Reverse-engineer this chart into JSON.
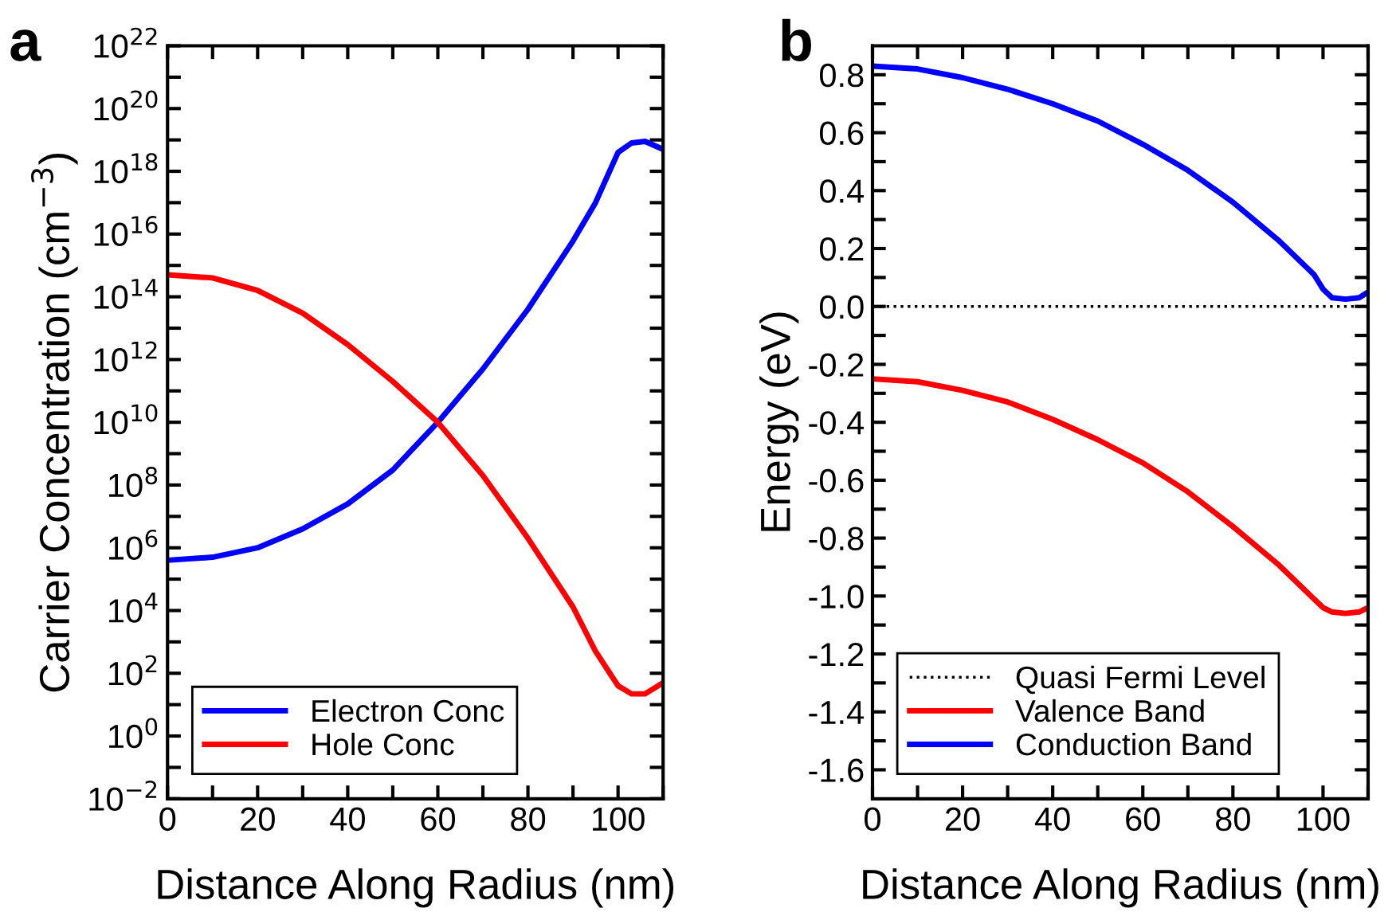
{
  "chart_data": [
    {
      "type": "line",
      "annotations": [
        "a"
      ],
      "xlabel": "Distance Along Radius (nm)",
      "ylabel": "Carrier Concentration (cm$^{−3}$)",
      "log": "y",
      "legend": "bottom left",
      "grid": false,
      "line_style": "solid",
      "marker": "none",
      "xlim": [
        0,
        110
      ],
      "xticks": [
        0,
        {
          "value": 10,
          "label": null
        },
        20,
        {
          "value": 30,
          "label": null
        },
        40,
        {
          "value": 50,
          "label": null
        },
        60,
        {
          "value": 70,
          "label": null
        },
        80,
        {
          "value": 90,
          "label": null
        },
        100,
        {
          "value": 110,
          "label": null
        }
      ],
      "ylim": [
        0.01,
        1e+22
      ],
      "yticks": [
        {
          "value": 0.01,
          "label": "10$^{−2}$"
        },
        {
          "value": 0.1,
          "label": null
        },
        {
          "value": 1,
          "label": "10$^{0}$"
        },
        {
          "value": 10,
          "label": null
        },
        {
          "value": 100.0,
          "label": "10$^{2}$"
        },
        {
          "value": 1000.0,
          "label": null
        },
        {
          "value": 10000.0,
          "label": "10$^{4}$"
        },
        {
          "value": 100000.0,
          "label": null
        },
        {
          "value": 1000000.0,
          "label": "10$^{6}$"
        },
        {
          "value": 10000000.0,
          "label": null
        },
        {
          "value": 100000000.0,
          "label": "10$^{8}$"
        },
        {
          "value": 1000000000.0,
          "label": null
        },
        {
          "value": 10000000000.0,
          "label": "10$^{10}$"
        },
        {
          "value": 100000000000.0,
          "label": null
        },
        {
          "value": 1000000000000.0,
          "label": "10$^{12}$"
        },
        {
          "value": 10000000000000.0,
          "label": null
        },
        {
          "value": 100000000000000.0,
          "label": "10$^{14}$"
        },
        {
          "value": 1000000000000000.0,
          "label": null
        },
        {
          "value": 1e+16,
          "label": "10$^{16}$"
        },
        {
          "value": 1e+17,
          "label": null
        },
        {
          "value": 1e+18,
          "label": "10$^{18}$"
        },
        {
          "value": 1e+19,
          "label": null
        },
        {
          "value": 1e+20,
          "label": "10$^{20}$"
        },
        {
          "value": 1e+21,
          "label": null
        },
        {
          "value": 1e+22,
          "label": "10$^{22}$"
        }
      ],
      "x": [
        0,
        10,
        20,
        30,
        40,
        50,
        60,
        70,
        80,
        90,
        95,
        100,
        103,
        106,
        110
      ],
      "series": [
        {
          "name": "Electron Conc",
          "color": "#0000ff",
          "values": [
            400000.0,
            500000.0,
            1000000.0,
            4000000.0,
            25000000.0,
            300000000.0,
            10000000000.0,
            500000000000.0,
            40000000000000.0,
            6000000000000000.0,
            1e+17,
            4e+18,
            8e+18,
            9e+18,
            5e+18
          ]
        },
        {
          "name": "Hole Conc",
          "color": "#ff0000",
          "values": [
            500000000000000.0,
            400000000000000.0,
            160000000000000.0,
            30000000000000.0,
            3000000000000.0,
            200000000000.0,
            10000000000.0,
            200000000.0,
            2000000.0,
            13000.0,
            500.0,
            40.0,
            22.0,
            22.0,
            50.0
          ]
        }
      ]
    },
    {
      "type": "line",
      "annotations": [
        "b"
      ],
      "xlabel": "Distance Along Radius (nm)",
      "ylabel": "Energy (eV)",
      "legend": "bottom left",
      "grid": false,
      "marker": "none",
      "xlim": [
        0,
        110
      ],
      "xticks": [
        0,
        {
          "value": 10,
          "label": null
        },
        20,
        {
          "value": 30,
          "label": null
        },
        40,
        {
          "value": 50,
          "label": null
        },
        60,
        {
          "value": 70,
          "label": null
        },
        80,
        {
          "value": 90,
          "label": null
        },
        100,
        {
          "value": 110,
          "label": null
        }
      ],
      "ylim": [
        -1.7,
        0.9
      ],
      "yticks": [
        {
          "value": -1.6,
          "label": "-1.6"
        },
        {
          "value": -1.5,
          "label": null
        },
        {
          "value": -1.4,
          "label": "-1.4"
        },
        {
          "value": -1.3,
          "label": null
        },
        {
          "value": -1.2,
          "label": "-1.2"
        },
        {
          "value": -1.1,
          "label": null
        },
        {
          "value": -1.0,
          "label": "-1.0"
        },
        {
          "value": -0.9,
          "label": null
        },
        {
          "value": -0.8,
          "label": "-0.8"
        },
        {
          "value": -0.7,
          "label": null
        },
        {
          "value": -0.6,
          "label": "-0.6"
        },
        {
          "value": -0.5,
          "label": null
        },
        {
          "value": -0.4,
          "label": "-0.4"
        },
        {
          "value": -0.3,
          "label": null
        },
        {
          "value": -0.2,
          "label": "-0.2"
        },
        {
          "value": -0.1,
          "label": null
        },
        {
          "value": 0.0,
          "label": "0.0"
        },
        {
          "value": 0.1,
          "label": null
        },
        {
          "value": 0.2,
          "label": "0.2"
        },
        {
          "value": 0.3,
          "label": null
        },
        {
          "value": 0.4,
          "label": "0.4"
        },
        {
          "value": 0.5,
          "label": null
        },
        {
          "value": 0.6,
          "label": "0.6"
        },
        {
          "value": 0.7,
          "label": null
        },
        {
          "value": 0.8,
          "label": "0.8"
        }
      ],
      "series": [
        {
          "name": "Quasi Fermi Level",
          "color": "#000000",
          "line_style": "dotted",
          "x": [
            0,
            110
          ],
          "values": [
            0,
            0
          ]
        },
        {
          "name": "Valence Band",
          "color": "#ff0000",
          "line_style": "solid",
          "x": [
            0,
            10,
            20,
            30,
            40,
            50,
            60,
            70,
            80,
            90,
            98,
            100,
            102,
            105,
            108,
            110
          ],
          "values": [
            -0.25,
            -0.26,
            -0.29,
            -0.33,
            -0.39,
            -0.46,
            -0.54,
            -0.64,
            -0.76,
            -0.89,
            -1.01,
            -1.04,
            -1.055,
            -1.06,
            -1.055,
            -1.04
          ]
        },
        {
          "name": "Conduction Band",
          "color": "#0000ff",
          "line_style": "solid",
          "x": [
            0,
            10,
            20,
            30,
            40,
            50,
            60,
            70,
            80,
            90,
            98,
            100,
            102,
            105,
            108,
            110
          ],
          "values": [
            0.83,
            0.82,
            0.79,
            0.75,
            0.7,
            0.64,
            0.56,
            0.47,
            0.36,
            0.23,
            0.11,
            0.06,
            0.03,
            0.025,
            0.03,
            0.05
          ]
        }
      ]
    }
  ]
}
